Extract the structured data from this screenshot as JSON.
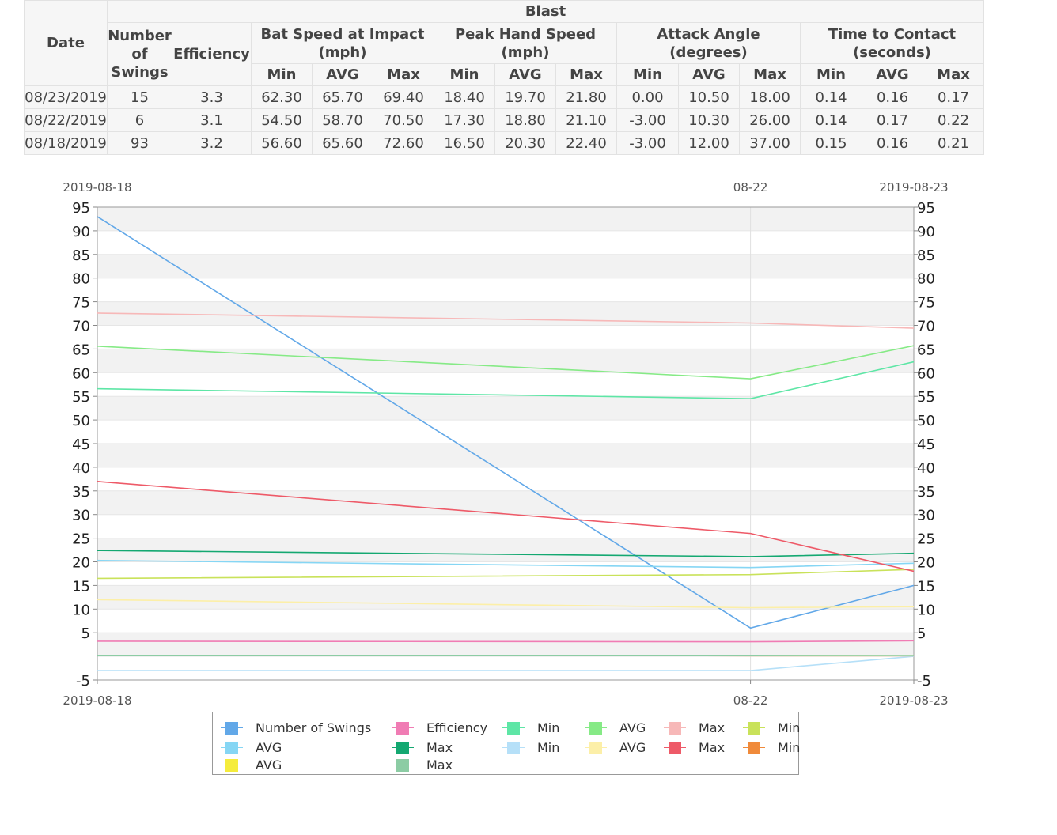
{
  "table": {
    "group_header": "Blast",
    "date_header": "Date",
    "swings_header": "Number of Swings",
    "efficiency_header": "Efficiency",
    "metric_headers": [
      "Bat Speed at Impact (mph)",
      "Peak Hand Speed (mph)",
      "Attack Angle (degrees)",
      "Time to Contact (seconds)"
    ],
    "sub_headers": [
      "Min",
      "AVG",
      "Max"
    ],
    "rows": [
      {
        "date": "08/23/2019",
        "swings": "15",
        "efficiency": "3.3",
        "values": [
          "62.30",
          "65.70",
          "69.40",
          "18.40",
          "19.70",
          "21.80",
          "0.00",
          "10.50",
          "18.00",
          "0.14",
          "0.16",
          "0.17"
        ]
      },
      {
        "date": "08/22/2019",
        "swings": "6",
        "efficiency": "3.1",
        "values": [
          "54.50",
          "58.70",
          "70.50",
          "17.30",
          "18.80",
          "21.10",
          "-3.00",
          "10.30",
          "26.00",
          "0.14",
          "0.17",
          "0.22"
        ]
      },
      {
        "date": "08/18/2019",
        "swings": "93",
        "efficiency": "3.2",
        "values": [
          "56.60",
          "65.60",
          "72.60",
          "16.50",
          "20.30",
          "22.40",
          "-3.00",
          "12.00",
          "37.00",
          "0.15",
          "0.16",
          "0.21"
        ]
      }
    ]
  },
  "chart_data": {
    "type": "line",
    "x": [
      "2019-08-18",
      "2019-08-22",
      "2019-08-23"
    ],
    "x_tick_labels": [
      "2019-08-18",
      "08-22",
      "2019-08-23"
    ],
    "ylim": [
      -5,
      95
    ],
    "y_ticks": [
      -5,
      5,
      10,
      15,
      20,
      25,
      30,
      35,
      40,
      45,
      50,
      55,
      60,
      65,
      70,
      75,
      80,
      85,
      90,
      95
    ],
    "grid": true,
    "legend_position": "bottom",
    "series": [
      {
        "name": "Number of Swings",
        "color": "#62a8e8",
        "values": [
          93,
          6,
          15
        ]
      },
      {
        "name": "Efficiency",
        "color": "#f07cb4",
        "values": [
          3.2,
          3.1,
          3.3
        ]
      },
      {
        "name": "Min",
        "color": "#5ee6a6",
        "values": [
          56.6,
          54.5,
          62.3
        ]
      },
      {
        "name": "AVG",
        "color": "#86ea86",
        "values": [
          65.6,
          58.7,
          65.7
        ]
      },
      {
        "name": "Max",
        "color": "#f7b8b8",
        "values": [
          72.6,
          70.5,
          69.4
        ]
      },
      {
        "name": "Min",
        "color": "#c9e25a",
        "values": [
          16.5,
          17.3,
          18.4
        ]
      },
      {
        "name": "AVG",
        "color": "#86d6f4",
        "values": [
          20.3,
          18.8,
          19.7
        ]
      },
      {
        "name": "Max",
        "color": "#14a871",
        "values": [
          22.4,
          21.1,
          21.8
        ]
      },
      {
        "name": "Min",
        "color": "#b6e0f8",
        "values": [
          -3.0,
          -3.0,
          0.0
        ]
      },
      {
        "name": "AVG",
        "color": "#fcefa8",
        "values": [
          12.0,
          10.3,
          10.5
        ]
      },
      {
        "name": "Max",
        "color": "#ee5a68",
        "values": [
          37.0,
          26.0,
          18.0
        ]
      },
      {
        "name": "Min",
        "color": "#f08a3a",
        "values": [
          0.15,
          0.14,
          0.14
        ]
      },
      {
        "name": "AVG",
        "color": "#f5ec3c",
        "values": [
          0.16,
          0.17,
          0.16
        ]
      },
      {
        "name": "Max",
        "color": "#8ccca4",
        "values": [
          0.21,
          0.22,
          0.17
        ]
      }
    ]
  }
}
